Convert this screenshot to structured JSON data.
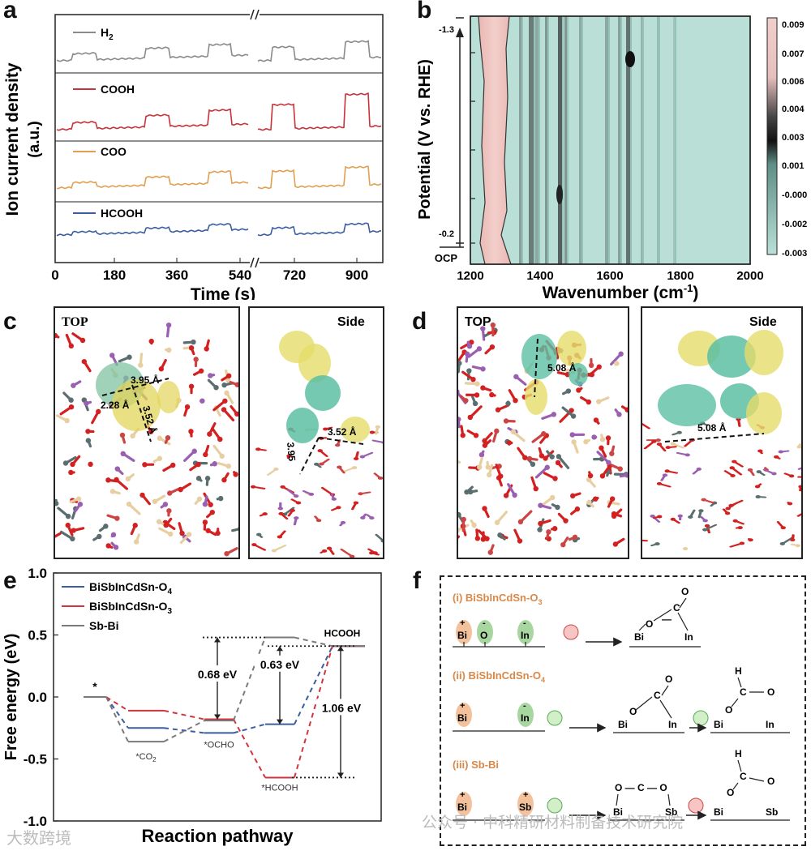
{
  "panels": {
    "a": "a",
    "b": "b",
    "c": "c",
    "d": "d",
    "e": "e",
    "f": "f"
  },
  "panel_a": {
    "ylabel": "Ion current density",
    "ylabel_unit": "(a.u.)",
    "xlabel": "Time (s)",
    "xticks": [
      "0",
      "180",
      "360",
      "540",
      "720",
      "900"
    ],
    "traces": [
      {
        "name": "H2",
        "label_main": "H",
        "label_sub": "2",
        "color": "#8a8a8a"
      },
      {
        "name": "COOH",
        "label_main": "COOH",
        "label_sub": "",
        "color": "#c8323a"
      },
      {
        "name": "COO",
        "label_main": "COO",
        "label_sub": "",
        "color": "#e0a050"
      },
      {
        "name": "HCOOH",
        "label_main": "HCOOH",
        "label_sub": "",
        "color": "#3a5ea0"
      }
    ]
  },
  "panel_b": {
    "ylabel": "Potential (V vs. RHE)",
    "xlabel": "Wavenumber (cm",
    "xlabel_sup": "-1",
    "xlabel_end": ")",
    "xticks": [
      "1200",
      "1400",
      "1600",
      "1800",
      "2000"
    ],
    "ytop": "-1.3",
    "ybottom": "-0.2",
    "yocp": "OCP",
    "colorbar_ticks": [
      "0.009",
      "0.007",
      "0.006",
      "0.004",
      "0.003",
      "0.001",
      "-0.000",
      "-0.002",
      "-0.003"
    ]
  },
  "panel_c": {
    "top": "TOP",
    "side": "Side",
    "d1": "3.95 Å",
    "d2": "2.28 Å",
    "d3": "3.52 Å",
    "s1": "3.52 Å",
    "s2": "3.95"
  },
  "panel_d": {
    "top": "TOP",
    "side": "Side",
    "d1": "5.08 Å",
    "s1": "5.08 Å"
  },
  "chart_data": {
    "type": "line",
    "title": "",
    "xlabel": "Reaction pathway",
    "ylabel": "Free energy (eV)",
    "ylim": [
      -1.0,
      1.0
    ],
    "yticks": [
      "1.0",
      "0.5",
      "0.0",
      "-0.5",
      "-1.0"
    ],
    "categories": [
      "*",
      "*CO2",
      "*OCHO",
      "*HCOOH",
      "HCOOH"
    ],
    "series": [
      {
        "name": "BiSbInCdSn-O4",
        "label_main": "BiSbInCdSn-O",
        "label_sub": "4",
        "color": "#3a5ea0",
        "values": [
          0.0,
          -0.25,
          -0.29,
          -0.22,
          0.41
        ]
      },
      {
        "name": "BiSbInCdSn-O3",
        "label_main": "BiSbInCdSn-O",
        "label_sub": "3",
        "color": "#d0343c",
        "values": [
          0.0,
          -0.11,
          -0.18,
          -0.65,
          0.41
        ]
      },
      {
        "name": "Sb-Bi",
        "label_main": "Sb-Bi",
        "label_sub": "",
        "color": "#7a7a7a",
        "values": [
          0.0,
          -0.36,
          -0.19,
          0.48,
          0.41
        ]
      }
    ],
    "annotations": {
      "a1": "0.68 eV",
      "a2": "0.63 eV",
      "a3": "1.06 eV",
      "star": "*",
      "co2": "*CO",
      "co2_sub": "2",
      "ocho": "*OCHO",
      "hcooh_ads": "*HCOOH",
      "hcooh": "HCOOH"
    }
  },
  "panel_f": {
    "title_i": "(i) BiSbInCdSn-O",
    "title_i_sub": "3",
    "title_ii": "(ii) BiSbInCdSn-O",
    "title_ii_sub": "4",
    "title_iii": "(iii) Sb-Bi",
    "atoms": {
      "bi": "Bi",
      "o": "O",
      "in": "In",
      "sb": "Sb",
      "c": "C",
      "h": "H"
    }
  },
  "watermark": {
    "left": "大数跨境",
    "right": "公众号 · 中科精研材料制备技术研究院"
  }
}
